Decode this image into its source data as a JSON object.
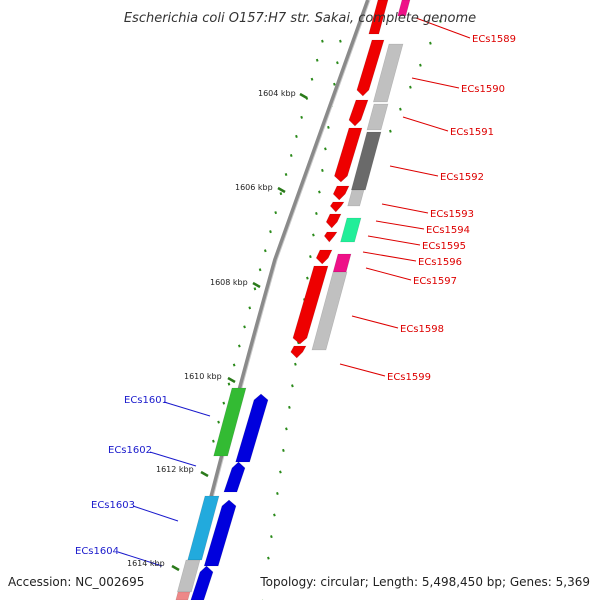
{
  "title": "Escherichia coli O157:H7 str. Sakai, complete genome",
  "footer": {
    "accession": "Accession: NC_002695",
    "summary": "Topology: circular; Length: 5,498,450 bp; Genes: 5,369"
  },
  "colors": {
    "backbone": "#8a8a8a",
    "tick": "#2a7a1a",
    "dot": "#2a8a1a",
    "label_right": "#dd0000",
    "label_left": "#1a1acc",
    "forward_gene": "#ee0000",
    "reverse_gene": "#0000dd",
    "cog_grey": "#c0c0c0",
    "cog_dark": "#6a6a6a",
    "cog_pink": "#ee1188",
    "cog_teal": "#22ee99",
    "cog_green": "#33bb33",
    "cog_cyan": "#22aadd"
  },
  "scale_labels": [
    "1604 kbp",
    "1606 kbp",
    "1608 kbp",
    "1610 kbp",
    "1612 kbp",
    "1614 kbp"
  ],
  "genes_right": [
    "ECs1589",
    "ECs1590",
    "ECs1591",
    "ECs1592",
    "ECs1593",
    "ECs1594",
    "ECs1595",
    "ECs1596",
    "ECs1597",
    "ECs1598",
    "ECs1599"
  ],
  "genes_left": [
    "ECs1601",
    "ECs1602",
    "ECs1603",
    "ECs1604"
  ]
}
